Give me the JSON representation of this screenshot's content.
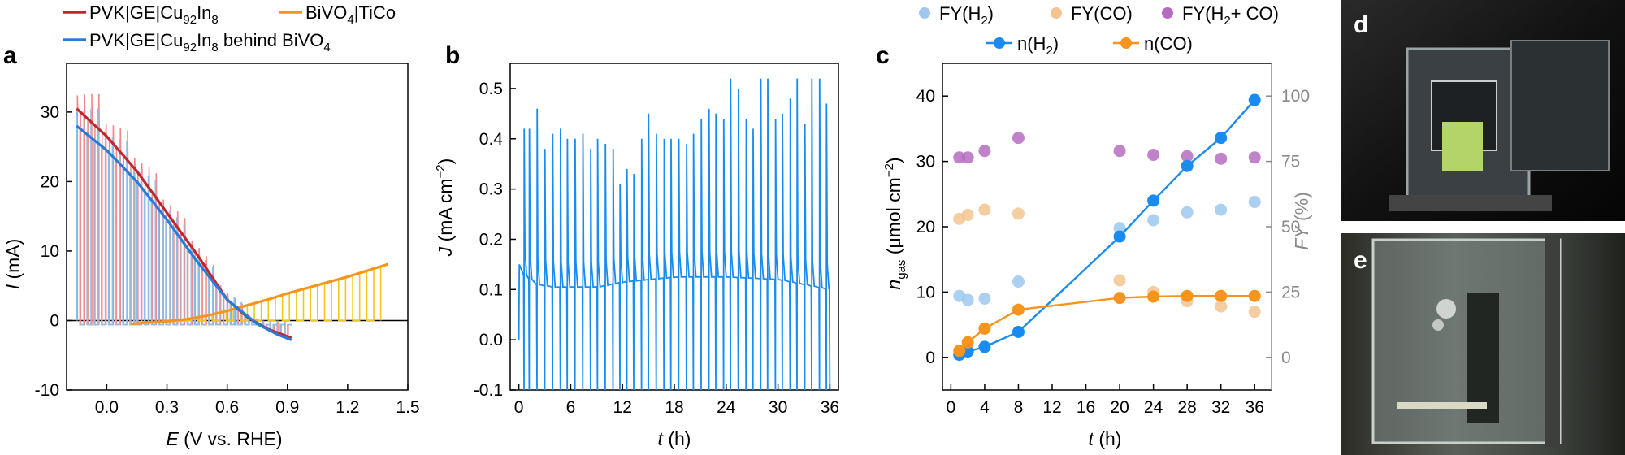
{
  "colors": {
    "pvk": "#c0272d",
    "pvk_light": "#f08a8a",
    "bivo4": "#f7941d",
    "bivo4_light": "#f5c518",
    "behind": "#2b7bd6",
    "behind_light": "#8fbfe8",
    "jblue": "#1a8cf0",
    "fy_h2": "#9ec8ee",
    "fy_co": "#f2c48f",
    "fy_sum": "#b56cc0",
    "n_h2": "#1a8cf0",
    "n_co": "#f7941d",
    "right_axis_gray": "#8a8a8a"
  },
  "chart_data": [
    {
      "panel": "a",
      "type": "line",
      "legend": {
        "items": [
          {
            "id": "pvk",
            "label": "PVK|GE|Cu92In8"
          },
          {
            "id": "bivo4",
            "label": "BiVO4|TiCo"
          },
          {
            "id": "behind",
            "label": "PVK|GE|Cu92In8 behind BiVO4"
          }
        ]
      },
      "xlabel": "E (V vs. RHE)",
      "ylabel": "I (mA)",
      "xlim": [
        -0.2,
        1.5
      ],
      "ylim": [
        -10,
        37
      ],
      "xticks": [
        "0.0",
        "0.3",
        "0.6",
        "0.9",
        "1.2",
        "1.5"
      ],
      "xtick_values": [
        0.0,
        0.3,
        0.6,
        0.9,
        1.2,
        1.5
      ],
      "yticks": [
        "-10",
        "0",
        "10",
        "20",
        "30"
      ],
      "ytick_values": [
        -10,
        0,
        10,
        20,
        30
      ],
      "series": [
        {
          "name": "PVK|GE|Cu92In8",
          "color_key": "pvk",
          "x": [
            -0.15,
            0.0,
            0.15,
            0.3,
            0.45,
            0.6,
            0.7,
            0.8,
            0.92
          ],
          "y": [
            30.5,
            26.5,
            21.5,
            15.5,
            9.5,
            3.0,
            0.5,
            -1.2,
            -2.5
          ]
        },
        {
          "name": "PVK|GE|Cu92In8 behind BiVO4",
          "color_key": "behind",
          "x": [
            -0.15,
            0.0,
            0.15,
            0.3,
            0.45,
            0.6,
            0.75,
            0.85,
            0.92
          ],
          "y": [
            28.0,
            24.5,
            20.0,
            14.5,
            8.5,
            3.0,
            -0.5,
            -2.0,
            -2.8
          ]
        },
        {
          "name": "BiVO4|TiCo",
          "color_key": "bivo4",
          "x": [
            0.12,
            0.2,
            0.3,
            0.4,
            0.5,
            0.6,
            0.7,
            0.8,
            0.9,
            1.0,
            1.1,
            1.2,
            1.3,
            1.4
          ],
          "y": [
            -0.5,
            -0.3,
            -0.1,
            0.2,
            0.7,
            1.4,
            2.2,
            3.0,
            3.9,
            4.7,
            5.5,
            6.3,
            7.2,
            8.1
          ]
        }
      ],
      "chopped_light_spike_count": 30
    },
    {
      "panel": "b",
      "type": "line",
      "xlabel": "t (h)",
      "ylabel": "J (mA cm−2)",
      "xlim": [
        -1,
        37
      ],
      "ylim": [
        -0.1,
        0.55
      ],
      "xticks": [
        "0",
        "6",
        "12",
        "18",
        "24",
        "30",
        "36"
      ],
      "xtick_values": [
        0,
        6,
        12,
        18,
        24,
        30,
        36
      ],
      "yticks": [
        "-0.1",
        "0.0",
        "0.1",
        "0.2",
        "0.3",
        "0.4",
        "0.5"
      ],
      "ytick_values": [
        -0.1,
        0.0,
        0.1,
        0.2,
        0.3,
        0.4,
        0.5
      ],
      "series": [
        {
          "name": "J",
          "color_key": "jblue",
          "baseline_t": [
            0.1,
            0.5,
            2,
            4,
            6,
            9,
            12,
            15,
            18,
            24,
            30,
            35.9
          ],
          "baseline_J": [
            0.15,
            0.13,
            0.11,
            0.105,
            0.105,
            0.105,
            0.115,
            0.12,
            0.125,
            0.125,
            0.12,
            0.1
          ],
          "spike_t": [
            0.6,
            1.2,
            2.1,
            3.0,
            3.9,
            4.8,
            5.6,
            6.5,
            7.4,
            8.3,
            9.1,
            10.0,
            10.9,
            11.7,
            12.5,
            13.3,
            14.2,
            15.0,
            15.9,
            16.8,
            17.6,
            18.5,
            19.4,
            20.2,
            21.1,
            22.0,
            22.8,
            23.7,
            24.5,
            25.4,
            26.3,
            27.1,
            28.0,
            28.8,
            29.7,
            30.5,
            31.4,
            32.2,
            33.1,
            33.9,
            34.8,
            35.6
          ],
          "spike_J": [
            0.42,
            0.42,
            0.46,
            0.38,
            0.41,
            0.42,
            0.4,
            0.4,
            0.41,
            0.38,
            0.4,
            0.39,
            0.38,
            0.31,
            0.34,
            0.33,
            0.4,
            0.45,
            0.41,
            0.4,
            0.4,
            0.4,
            0.39,
            0.41,
            0.44,
            0.46,
            0.45,
            0.44,
            0.52,
            0.5,
            0.44,
            0.42,
            0.52,
            0.52,
            0.44,
            0.45,
            0.48,
            0.52,
            0.43,
            0.52,
            0.52,
            0.47
          ]
        }
      ]
    },
    {
      "panel": "c",
      "type": "scatter",
      "legend": {
        "items": [
          {
            "id": "fy_h2",
            "label": "FY(H2)"
          },
          {
            "id": "fy_co",
            "label": "FY(CO)"
          },
          {
            "id": "fy_sum",
            "label": "FY(H2+ CO)"
          },
          {
            "id": "n_h2",
            "label": "n(H2)"
          },
          {
            "id": "n_co",
            "label": "n(CO)"
          }
        ]
      },
      "xlabel": "t (h)",
      "ylabel_left": "ngas (μmol cm−2)",
      "ylabel_right": "FY (%)",
      "xlim": [
        -1,
        38
      ],
      "ylim_left": [
        -5,
        45
      ],
      "ylim_right": [
        -12.5,
        112.5
      ],
      "xticks": [
        "0",
        "4",
        "8",
        "12",
        "16",
        "20",
        "24",
        "28",
        "32",
        "36"
      ],
      "xtick_values": [
        0,
        4,
        8,
        12,
        16,
        20,
        24,
        28,
        32,
        36
      ],
      "yticks_left": [
        "0",
        "10",
        "20",
        "30",
        "40"
      ],
      "ytick_values_left": [
        0,
        10,
        20,
        30,
        40
      ],
      "yticks_right": [
        "0",
        "25",
        "50",
        "75",
        "100"
      ],
      "ytick_values_right": [
        0,
        25,
        50,
        75,
        100
      ],
      "series": [
        {
          "name": "FY(H2)",
          "color_key": "fy_h2",
          "axis": "right",
          "mode": "markers",
          "x": [
            1,
            2,
            4,
            8,
            20,
            24,
            28,
            32,
            36
          ],
          "y": [
            23.5,
            22.0,
            22.5,
            29.0,
            49.5,
            52.5,
            55.5,
            56.5,
            59.5
          ]
        },
        {
          "name": "FY(CO)",
          "color_key": "fy_co",
          "axis": "right",
          "mode": "markers",
          "x": [
            1,
            2,
            4,
            8,
            20,
            24,
            28,
            32,
            36
          ],
          "y": [
            53.0,
            54.5,
            56.5,
            55.0,
            29.5,
            25.0,
            21.5,
            19.5,
            17.5
          ]
        },
        {
          "name": "FY(H2+ CO)",
          "color_key": "fy_sum",
          "axis": "right",
          "mode": "markers",
          "x": [
            1,
            2,
            4,
            8,
            20,
            24,
            28,
            32,
            36
          ],
          "y": [
            76.5,
            76.5,
            79.0,
            84.0,
            79.0,
            77.5,
            77.0,
            76.0,
            76.5
          ]
        },
        {
          "name": "n(H2)",
          "color_key": "n_h2",
          "axis": "left",
          "mode": "lines+markers",
          "x": [
            1,
            2,
            4,
            8,
            20,
            24,
            28,
            32,
            36
          ],
          "y": [
            0.4,
            0.9,
            1.6,
            3.9,
            18.5,
            24.0,
            29.3,
            33.6,
            39.4
          ]
        },
        {
          "name": "n(CO)",
          "color_key": "n_co",
          "axis": "left",
          "mode": "lines+markers",
          "x": [
            1,
            2,
            4,
            8,
            20,
            24,
            28,
            32,
            36
          ],
          "y": [
            1.0,
            2.3,
            4.4,
            7.3,
            9.1,
            9.3,
            9.4,
            9.4,
            9.4
          ]
        }
      ]
    }
  ],
  "panels": {
    "a": "a",
    "b": "b",
    "c": "c",
    "d": "d",
    "e": "e"
  }
}
